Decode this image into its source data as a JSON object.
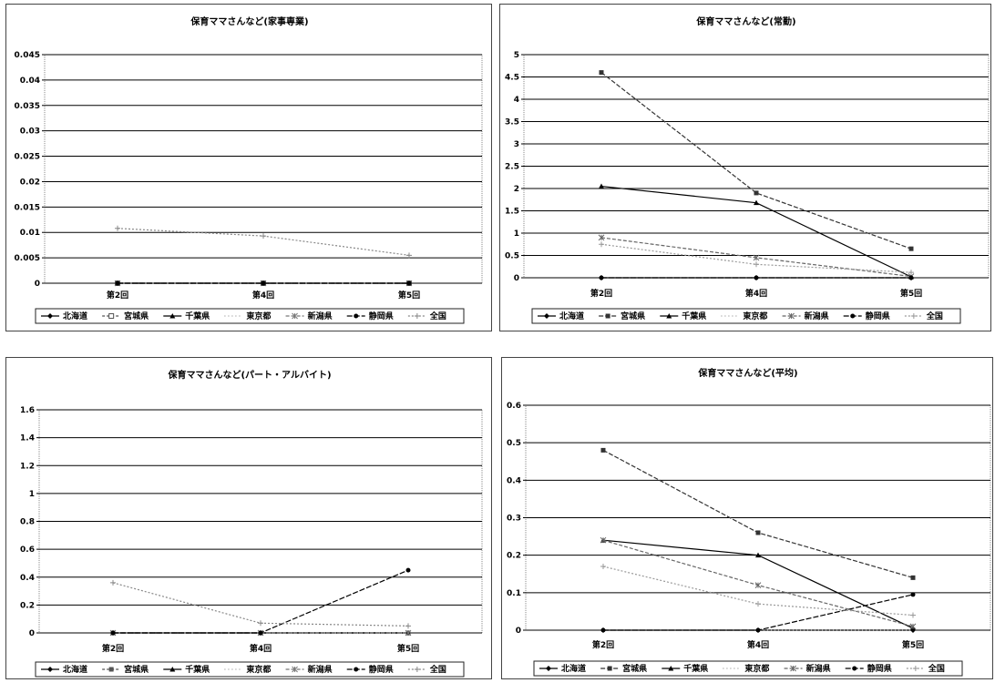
{
  "chart_data": [
    {
      "type": "line",
      "title": "保育ママさんなど(家事専業)",
      "categories": [
        "第2回",
        "第4回",
        "第5回"
      ],
      "ylim": [
        0,
        0.045
      ],
      "yticks": [
        "0",
        "0.005",
        "0.01",
        "0.015",
        "0.02",
        "0.025",
        "0.03",
        "0.035",
        "0.04",
        "0.045"
      ],
      "grid": true,
      "legend_position": "bottom",
      "series": [
        {
          "name": "北海道",
          "values": [
            0,
            0,
            0
          ],
          "color": "#000000",
          "dash": "",
          "marker": "diamond"
        },
        {
          "name": "宮城県",
          "values": [
            0,
            0,
            0
          ],
          "color": "#555555",
          "dash": "3,2",
          "marker": "square-open"
        },
        {
          "name": "千葉県",
          "values": [
            0,
            0,
            0
          ],
          "color": "#000000",
          "dash": "",
          "marker": "triangle"
        },
        {
          "name": "東京都",
          "values": [
            0,
            0,
            0
          ],
          "color": "#999999",
          "dash": "1,3",
          "marker": "none"
        },
        {
          "name": "新潟県",
          "values": [
            0,
            0,
            0
          ],
          "color": "#777777",
          "dash": "4,2",
          "marker": "star"
        },
        {
          "name": "静岡県",
          "values": [
            0,
            0,
            0
          ],
          "color": "#000000",
          "dash": "6,2",
          "marker": "circle"
        },
        {
          "name": "全国",
          "values": [
            0.0108,
            0.0093,
            0.0055
          ],
          "color": "#888888",
          "dash": "2,2",
          "marker": "plus"
        }
      ]
    },
    {
      "type": "line",
      "title": "保育ママさんなど(常勤)",
      "categories": [
        "第2回",
        "第4回",
        "第5回"
      ],
      "ylim": [
        0,
        5
      ],
      "yticks": [
        "0",
        "0.5",
        "1",
        "1.5",
        "2",
        "2.5",
        "3",
        "3.5",
        "4",
        "4.5",
        "5"
      ],
      "grid": true,
      "legend_position": "bottom",
      "series": [
        {
          "name": "北海道",
          "values": [
            0,
            0,
            0
          ],
          "color": "#000000",
          "dash": "",
          "marker": "diamond"
        },
        {
          "name": "宮城県",
          "values": [
            4.6,
            1.9,
            0.65
          ],
          "color": "#333333",
          "dash": "5,2",
          "marker": "square"
        },
        {
          "name": "千葉県",
          "values": [
            2.05,
            1.68,
            0.02
          ],
          "color": "#000000",
          "dash": "",
          "marker": "triangle"
        },
        {
          "name": "東京都",
          "values": [
            0,
            0,
            0
          ],
          "color": "#999999",
          "dash": "1,3",
          "marker": "none"
        },
        {
          "name": "新潟県",
          "values": [
            0.9,
            0.45,
            0.03
          ],
          "color": "#666666",
          "dash": "4,2",
          "marker": "star"
        },
        {
          "name": "静岡県",
          "values": [
            0,
            0,
            0
          ],
          "color": "#000000",
          "dash": "6,2",
          "marker": "circle"
        },
        {
          "name": "全国",
          "values": [
            0.75,
            0.3,
            0.12
          ],
          "color": "#999999",
          "dash": "2,2",
          "marker": "plus"
        }
      ]
    },
    {
      "type": "line",
      "title": "保育ママさんなど(パート・アルバイト)",
      "categories": [
        "第2回",
        "第4回",
        "第5回"
      ],
      "ylim": [
        0,
        1.6
      ],
      "yticks": [
        "0",
        "0.2",
        "0.4",
        "0.6",
        "0.8",
        "1",
        "1.2",
        "1.4",
        "1.6"
      ],
      "grid": true,
      "legend_position": "bottom",
      "series": [
        {
          "name": "北海道",
          "values": [
            0,
            0,
            0
          ],
          "color": "#000000",
          "dash": "",
          "marker": "diamond"
        },
        {
          "name": "宮城県",
          "values": [
            0,
            0,
            0
          ],
          "color": "#555555",
          "dash": "3,2",
          "marker": "square"
        },
        {
          "name": "千葉県",
          "values": [
            0,
            0,
            0
          ],
          "color": "#000000",
          "dash": "",
          "marker": "triangle"
        },
        {
          "name": "東京都",
          "values": [
            0,
            0,
            0
          ],
          "color": "#999999",
          "dash": "1,3",
          "marker": "none"
        },
        {
          "name": "新潟県",
          "values": [
            0,
            0,
            0
          ],
          "color": "#777777",
          "dash": "4,2",
          "marker": "star"
        },
        {
          "name": "静岡県",
          "values": [
            0,
            0,
            0.45
          ],
          "color": "#000000",
          "dash": "6,2",
          "marker": "circle"
        },
        {
          "name": "全国",
          "values": [
            0.36,
            0.07,
            0.05
          ],
          "color": "#888888",
          "dash": "2,2",
          "marker": "plus"
        }
      ]
    },
    {
      "type": "line",
      "title": "保育ママさんなど(平均)",
      "categories": [
        "第2回",
        "第4回",
        "第5回"
      ],
      "ylim": [
        0,
        0.6
      ],
      "yticks": [
        "0",
        "0.1",
        "0.2",
        "0.3",
        "0.4",
        "0.5",
        "0.6"
      ],
      "grid": true,
      "legend_position": "bottom",
      "series": [
        {
          "name": "北海道",
          "values": [
            0,
            0,
            0
          ],
          "color": "#000000",
          "dash": "",
          "marker": "diamond"
        },
        {
          "name": "宮城県",
          "values": [
            0.48,
            0.26,
            0.14
          ],
          "color": "#333333",
          "dash": "5,2",
          "marker": "square"
        },
        {
          "name": "千葉県",
          "values": [
            0.24,
            0.2,
            0.005
          ],
          "color": "#000000",
          "dash": "",
          "marker": "triangle"
        },
        {
          "name": "東京都",
          "values": [
            0,
            0,
            0
          ],
          "color": "#999999",
          "dash": "1,3",
          "marker": "none"
        },
        {
          "name": "新潟県",
          "values": [
            0.24,
            0.12,
            0.01
          ],
          "color": "#666666",
          "dash": "4,2",
          "marker": "star"
        },
        {
          "name": "静岡県",
          "values": [
            0,
            0,
            0.095
          ],
          "color": "#000000",
          "dash": "6,2",
          "marker": "circle"
        },
        {
          "name": "全国",
          "values": [
            0.17,
            0.07,
            0.04
          ],
          "color": "#999999",
          "dash": "2,2",
          "marker": "plus"
        }
      ]
    }
  ]
}
